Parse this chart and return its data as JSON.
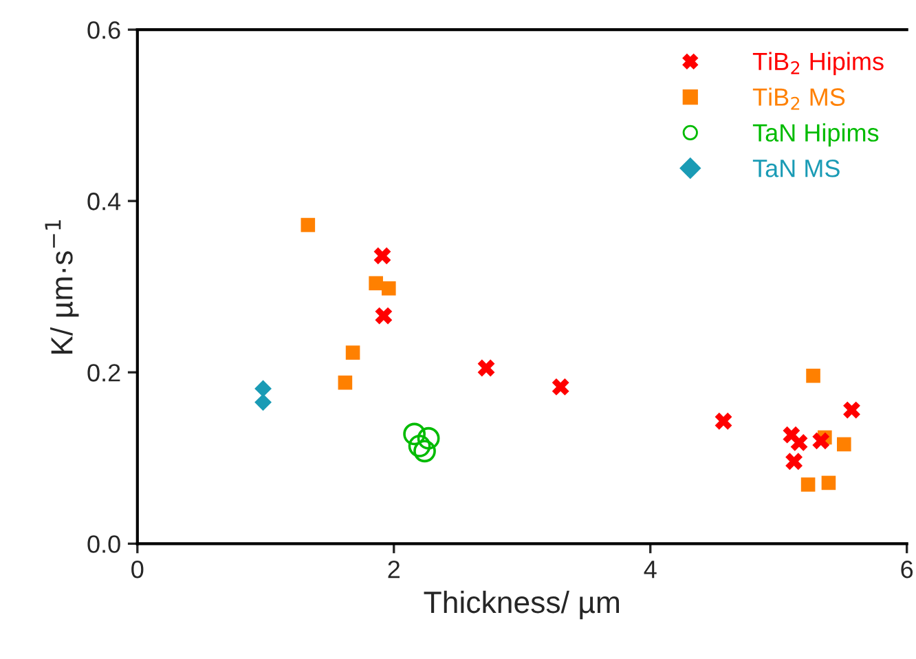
{
  "chart_data": {
    "type": "scatter",
    "xlabel": "Thickness/ µm",
    "ylabel": "K/ µm·s$^{−1}$",
    "xlim": [
      0,
      6
    ],
    "xticks": [
      0,
      2,
      4,
      6
    ],
    "ylim": [
      0,
      0.6
    ],
    "yticks": [
      {
        "value": 0,
        "label": "0.0"
      },
      0.2,
      0.4,
      0.6
    ],
    "legend": "top right",
    "grid": false,
    "series": [
      {
        "name": "TiB$_{2}$ Hipims",
        "color": "#ff0000",
        "marker": "cross",
        "x": [
          1.91,
          1.92,
          2.72,
          3.3,
          4.57,
          5.1,
          5.16,
          5.12,
          5.33,
          5.57
        ],
        "values": [
          0.336,
          0.266,
          0.205,
          0.183,
          0.143,
          0.127,
          0.118,
          0.096,
          0.12,
          0.156
        ]
      },
      {
        "name": "TiB$_{2}$ MS",
        "color": "#ff8000",
        "marker": "square",
        "x": [
          1.33,
          1.86,
          1.96,
          1.68,
          1.62,
          5.27,
          5.36,
          5.51,
          5.23,
          5.39
        ],
        "values": [
          0.372,
          0.304,
          0.298,
          0.223,
          0.188,
          0.196,
          0.124,
          0.116,
          0.069,
          0.071
        ]
      },
      {
        "name": "TaN Hipims",
        "color": "#00bb00",
        "marker": "circle",
        "x": [
          2.16,
          2.27,
          2.2,
          2.24
        ],
        "values": [
          0.128,
          0.123,
          0.114,
          0.108
        ]
      },
      {
        "name": "TaN MS",
        "color": "#1a9bb5",
        "marker": "diamond",
        "x": [
          0.98,
          0.98
        ],
        "values": [
          0.181,
          0.165
        ]
      }
    ]
  }
}
